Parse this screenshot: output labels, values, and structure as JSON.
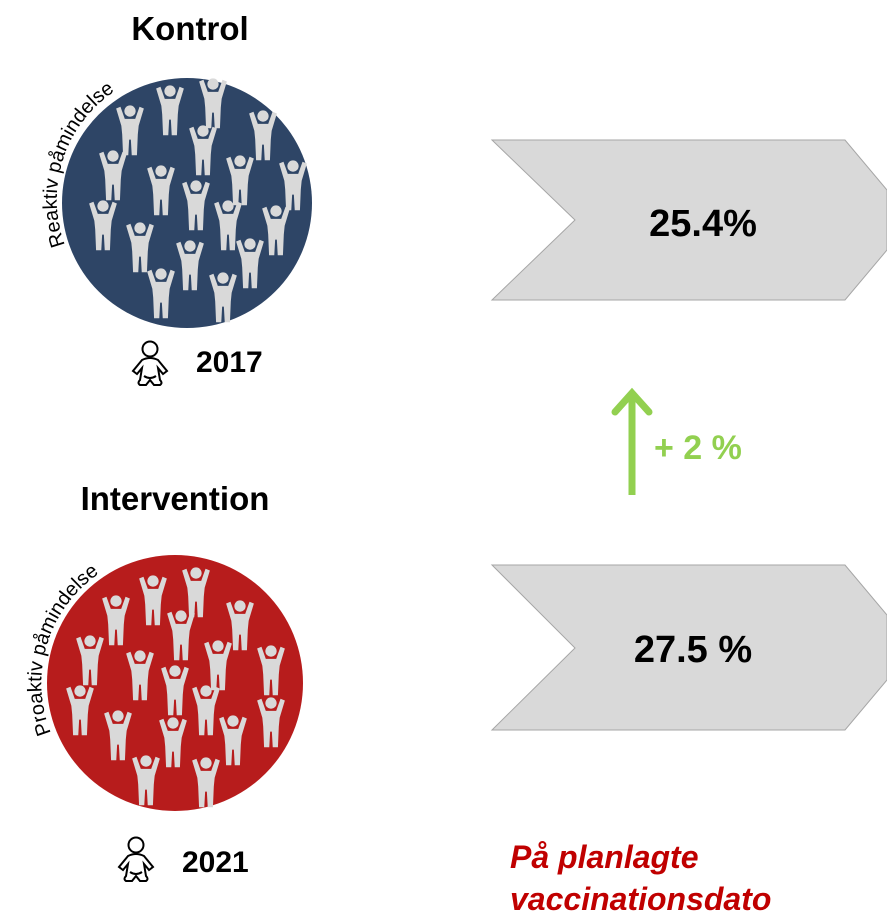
{
  "groups": [
    {
      "title": "Kontrol",
      "label": "Reaktiv påmindelse",
      "year": "2017",
      "result": "25.4%"
    },
    {
      "title": "Intervention",
      "label": "Proaktiv påmindelse",
      "year": "2021",
      "result": "27.5 %"
    }
  ],
  "change": "+ 2 %",
  "note": [
    "På planlagte",
    "vaccinationsdato"
  ]
}
